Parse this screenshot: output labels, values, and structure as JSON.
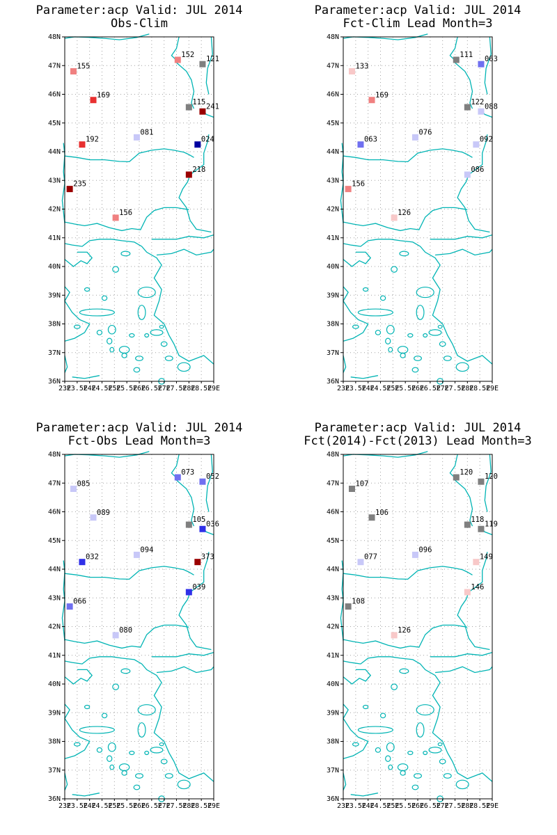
{
  "panels": [
    {
      "title1": "Parameter:acp Valid: JUL 2014",
      "title2": "Obs-Clim",
      "stations": [
        {
          "lon": 23.35,
          "lat": 46.8,
          "label": "155",
          "color": "#f08080"
        },
        {
          "lon": 27.55,
          "lat": 47.2,
          "label": "152",
          "color": "#f08080"
        },
        {
          "lon": 28.55,
          "lat": 47.05,
          "label": "121",
          "color": "#7f7f7f"
        },
        {
          "lon": 24.15,
          "lat": 45.8,
          "label": "169",
          "color": "#e83030"
        },
        {
          "lon": 28.0,
          "lat": 45.55,
          "label": "115",
          "color": "#7f7f7f"
        },
        {
          "lon": 28.55,
          "lat": 45.4,
          "label": "241",
          "color": "#9a0000"
        },
        {
          "lon": 25.9,
          "lat": 44.5,
          "label": "081",
          "color": "#c8c8f8"
        },
        {
          "lon": 23.7,
          "lat": 44.25,
          "label": "192",
          "color": "#e83030"
        },
        {
          "lon": 28.35,
          "lat": 44.25,
          "label": "024",
          "color": "#0000a0"
        },
        {
          "lon": 28.0,
          "lat": 43.2,
          "label": "218",
          "color": "#9a0000"
        },
        {
          "lon": 23.2,
          "lat": 42.7,
          "label": "235",
          "color": "#9a0000"
        },
        {
          "lon": 25.05,
          "lat": 41.7,
          "label": "156",
          "color": "#f08080"
        }
      ]
    },
    {
      "title1": "Parameter:acp Valid: JUL 2014",
      "title2": "Fct-Clim Lead Month=3",
      "stations": [
        {
          "lon": 23.35,
          "lat": 46.8,
          "label": "133",
          "color": "#f8c8c8"
        },
        {
          "lon": 27.55,
          "lat": 47.2,
          "label": "111",
          "color": "#7f7f7f"
        },
        {
          "lon": 28.55,
          "lat": 47.05,
          "label": "063",
          "color": "#7070f0"
        },
        {
          "lon": 24.15,
          "lat": 45.8,
          "label": "169",
          "color": "#f08080"
        },
        {
          "lon": 28.0,
          "lat": 45.55,
          "label": "122",
          "color": "#7f7f7f"
        },
        {
          "lon": 28.55,
          "lat": 45.4,
          "label": "088",
          "color": "#c8c8f8"
        },
        {
          "lon": 25.9,
          "lat": 44.5,
          "label": "076",
          "color": "#c8c8f8"
        },
        {
          "lon": 23.7,
          "lat": 44.25,
          "label": "063",
          "color": "#7070f0"
        },
        {
          "lon": 28.35,
          "lat": 44.25,
          "label": "092",
          "color": "#c8c8f8"
        },
        {
          "lon": 28.0,
          "lat": 43.2,
          "label": "086",
          "color": "#c8c8f8"
        },
        {
          "lon": 23.2,
          "lat": 42.7,
          "label": "156",
          "color": "#f08080"
        },
        {
          "lon": 25.05,
          "lat": 41.7,
          "label": "126",
          "color": "#f8c8c8"
        }
      ]
    },
    {
      "title1": "Parameter:acp Valid: JUL 2014",
      "title2": "Fct-Obs Lead Month=3",
      "stations": [
        {
          "lon": 23.35,
          "lat": 46.8,
          "label": "085",
          "color": "#c8c8f8"
        },
        {
          "lon": 27.55,
          "lat": 47.2,
          "label": "073",
          "color": "#7070f0"
        },
        {
          "lon": 28.55,
          "lat": 47.05,
          "label": "052",
          "color": "#7070f0"
        },
        {
          "lon": 24.15,
          "lat": 45.8,
          "label": "089",
          "color": "#c8c8f8"
        },
        {
          "lon": 28.0,
          "lat": 45.55,
          "label": "105",
          "color": "#7f7f7f"
        },
        {
          "lon": 28.55,
          "lat": 45.4,
          "label": "036",
          "color": "#3030e8"
        },
        {
          "lon": 25.9,
          "lat": 44.5,
          "label": "094",
          "color": "#c8c8f8"
        },
        {
          "lon": 23.7,
          "lat": 44.25,
          "label": "032",
          "color": "#3030e8"
        },
        {
          "lon": 28.35,
          "lat": 44.25,
          "label": "373",
          "color": "#9a0000"
        },
        {
          "lon": 28.0,
          "lat": 43.2,
          "label": "039",
          "color": "#3030e8"
        },
        {
          "lon": 23.2,
          "lat": 42.7,
          "label": "066",
          "color": "#7070f0"
        },
        {
          "lon": 25.05,
          "lat": 41.7,
          "label": "080",
          "color": "#c8c8f8"
        }
      ]
    },
    {
      "title1": "Parameter:acp Valid: JUL 2014",
      "title2": "Fct(2014)-Fct(2013) Lead Month=3",
      "stations": [
        {
          "lon": 23.35,
          "lat": 46.8,
          "label": "107",
          "color": "#7f7f7f"
        },
        {
          "lon": 27.55,
          "lat": 47.2,
          "label": "120",
          "color": "#7f7f7f"
        },
        {
          "lon": 28.55,
          "lat": 47.05,
          "label": "120",
          "color": "#7f7f7f"
        },
        {
          "lon": 24.15,
          "lat": 45.8,
          "label": "106",
          "color": "#7f7f7f"
        },
        {
          "lon": 28.0,
          "lat": 45.55,
          "label": "118",
          "color": "#7f7f7f"
        },
        {
          "lon": 28.55,
          "lat": 45.4,
          "label": "119",
          "color": "#7f7f7f"
        },
        {
          "lon": 25.9,
          "lat": 44.5,
          "label": "096",
          "color": "#c8c8f8"
        },
        {
          "lon": 23.7,
          "lat": 44.25,
          "label": "077",
          "color": "#c8c8f8"
        },
        {
          "lon": 28.35,
          "lat": 44.25,
          "label": "149",
          "color": "#f8c8c8"
        },
        {
          "lon": 28.0,
          "lat": 43.2,
          "label": "146",
          "color": "#f8c8c8"
        },
        {
          "lon": 23.2,
          "lat": 42.7,
          "label": "108",
          "color": "#7f7f7f"
        },
        {
          "lon": 25.05,
          "lat": 41.7,
          "label": "126",
          "color": "#f8c8c8"
        }
      ]
    }
  ],
  "axes": {
    "lat_labels": [
      "36N",
      "37N",
      "38N",
      "39N",
      "40N",
      "41N",
      "42N",
      "43N",
      "44N",
      "45N",
      "46N",
      "47N",
      "48N"
    ],
    "lon_labels": [
      "23E",
      "23.5E",
      "24E",
      "24.5E",
      "25E",
      "25.5E",
      "26E",
      "26.5E",
      "27E",
      "27.5E",
      "28E",
      "28.5E",
      "29E"
    ],
    "lon_range": [
      23,
      29
    ],
    "lat_range": [
      36,
      48
    ]
  },
  "colors": {
    "coast": "#00b4b4",
    "grid": "#a0a0a0"
  }
}
